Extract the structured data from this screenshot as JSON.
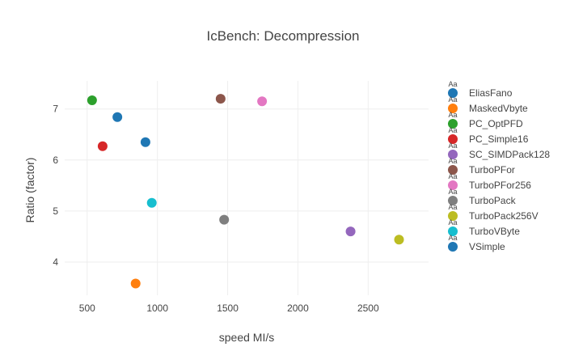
{
  "chart_data": {
    "type": "scatter",
    "title": "IcBench: Decompression",
    "xlabel": "speed MI/s",
    "ylabel": "Ratio (factor)",
    "xlim": [
      340,
      2930
    ],
    "ylim": [
      3.35,
      7.55
    ],
    "xticks": [
      500,
      1000,
      1500,
      2000,
      2500
    ],
    "yticks": [
      4,
      5,
      6,
      7
    ],
    "grid": true,
    "legend_position": "right",
    "legend_marker_text": "Aa",
    "series": [
      {
        "name": "EliasFano",
        "color": "#1f77b4",
        "x": [
          915
        ],
        "y": [
          6.35
        ]
      },
      {
        "name": "MaskedVbyte",
        "color": "#ff7f0e",
        "x": [
          845
        ],
        "y": [
          3.58
        ]
      },
      {
        "name": "PC_OptPFD",
        "color": "#2ca02c",
        "x": [
          535
        ],
        "y": [
          7.17
        ]
      },
      {
        "name": "PC_Simple16",
        "color": "#d62728",
        "x": [
          610
        ],
        "y": [
          6.27
        ]
      },
      {
        "name": "SC_SIMDPack128",
        "color": "#9467bd",
        "x": [
          2375
        ],
        "y": [
          4.6
        ]
      },
      {
        "name": "TurboPFor",
        "color": "#8c564b",
        "x": [
          1450
        ],
        "y": [
          7.2
        ]
      },
      {
        "name": "TurboPFor256",
        "color": "#e377c2",
        "x": [
          1745
        ],
        "y": [
          7.15
        ]
      },
      {
        "name": "TurboPack",
        "color": "#7f7f7f",
        "x": [
          1475
        ],
        "y": [
          4.83
        ]
      },
      {
        "name": "TurboPack256V",
        "color": "#bcbd22",
        "x": [
          2720
        ],
        "y": [
          4.44
        ]
      },
      {
        "name": "TurboVByte",
        "color": "#17becf",
        "x": [
          960
        ],
        "y": [
          5.16
        ]
      },
      {
        "name": "VSimple",
        "color": "#1f77b4",
        "x": [
          715
        ],
        "y": [
          6.84
        ]
      }
    ]
  }
}
